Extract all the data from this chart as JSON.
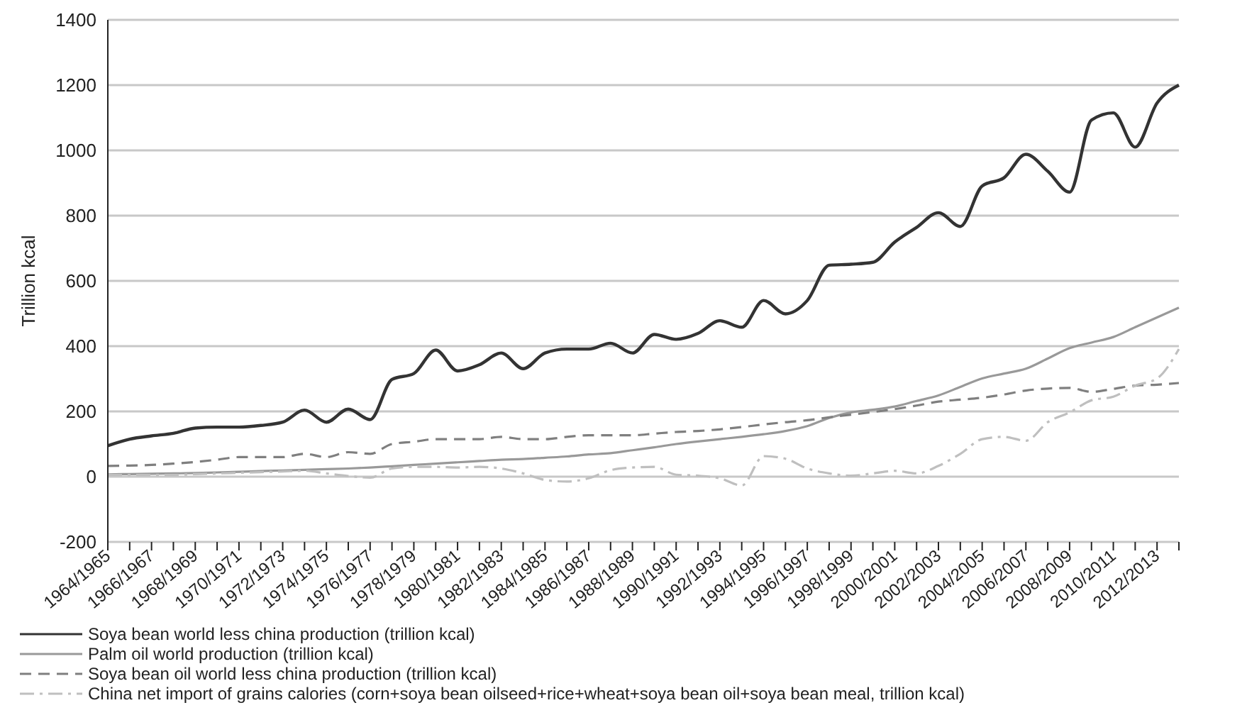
{
  "chart_data": {
    "type": "line",
    "ylabel": "Trillion kcal",
    "categories": [
      "1964/1965",
      null,
      "1966/1967",
      null,
      "1968/1969",
      null,
      "1970/1971",
      null,
      "1972/1973",
      null,
      "1974/1975",
      null,
      "1976/1977",
      null,
      "1978/1979",
      null,
      "1980/1981",
      null,
      "1982/1983",
      null,
      "1984/1985",
      null,
      "1986/1987",
      null,
      "1988/1989",
      null,
      "1990/1991",
      null,
      "1992/1993",
      null,
      "1994/1995",
      null,
      "1996/1997",
      null,
      "1998/1999",
      null,
      "2000/2001",
      null,
      "2002/2003",
      null,
      "2004/2005",
      null,
      "2006/2007",
      null,
      "2008/2009",
      null,
      "2010/2011",
      null,
      "2012/2013",
      null
    ],
    "series": [
      {
        "name": "Soya bean world less china production (trillion kcal)",
        "color": "#333333",
        "line_style": "solid",
        "values": [
          95,
          115,
          125,
          133,
          149,
          152,
          152,
          157,
          167,
          204,
          167,
          207,
          175,
          298,
          316,
          388,
          324,
          343,
          379,
          331,
          379,
          391,
          391,
          409,
          379,
          436,
          421,
          439,
          478,
          458,
          540,
          499,
          540,
          648,
          651,
          657,
          719,
          764,
          809,
          767,
          891,
          916,
          988,
          936,
          872,
          1093,
          1115,
          1010,
          1145,
          1200
        ]
      },
      {
        "name": "Palm oil world production (trillion kcal)",
        "color": "#999999",
        "line_style": "solid",
        "values": [
          7,
          8,
          9,
          10,
          11,
          13,
          15,
          17,
          19,
          21,
          23,
          25,
          28,
          32,
          36,
          40,
          44,
          48,
          52,
          54,
          58,
          62,
          68,
          72,
          81,
          90,
          100,
          108,
          115,
          122,
          130,
          140,
          155,
          180,
          197,
          205,
          215,
          232,
          249,
          275,
          301,
          316,
          331,
          362,
          394,
          411,
          428,
          458,
          488,
          518
        ]
      },
      {
        "name": "Soya bean oil world less china production (trillion kcal)",
        "color": "#7f7f7f",
        "line_style": "dashed",
        "values": [
          33,
          34,
          36,
          40,
          45,
          52,
          60,
          60,
          60,
          70,
          60,
          75,
          70,
          100,
          107,
          115,
          115,
          115,
          122,
          115,
          115,
          122,
          127,
          127,
          127,
          132,
          137,
          140,
          145,
          152,
          160,
          167,
          173,
          182,
          190,
          198,
          207,
          218,
          230,
          236,
          242,
          252,
          264,
          270,
          272,
          260,
          269,
          279,
          282,
          287
        ]
      },
      {
        "name": "China net import of grains calories (corn+soya bean oilseed+rice+wheat+soya bean oil+soya bean meal, trillion kcal)",
        "color": "#bfbfbf",
        "line_style": "dashdot",
        "values": [
          5,
          5,
          5,
          5,
          8,
          10,
          12,
          14,
          16,
          18,
          10,
          2,
          -3,
          25,
          30,
          30,
          28,
          30,
          25,
          10,
          -10,
          -15,
          -5,
          20,
          28,
          30,
          6,
          3,
          -5,
          -27,
          63,
          55,
          25,
          10,
          3,
          10,
          18,
          10,
          33,
          70,
          115,
          122,
          110,
          167,
          197,
          234,
          245,
          279,
          301,
          391
        ]
      }
    ],
    "ylim": [
      -200,
      1400
    ],
    "yticks": [
      -200,
      0,
      200,
      400,
      600,
      800,
      1000,
      1200,
      1400
    ],
    "grid": "y",
    "legend": "bottom",
    "marker": "none"
  }
}
